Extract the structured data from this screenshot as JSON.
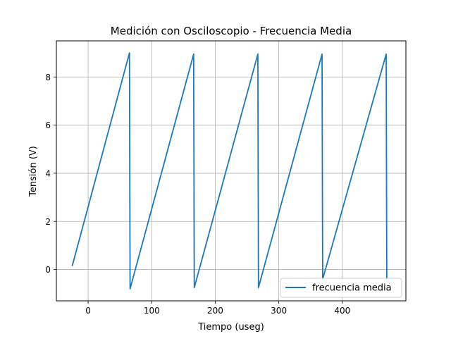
{
  "chart_data": {
    "type": "line",
    "title": "Medición con Osciloscopio - Frecuencia Media",
    "xlabel": "Tiempo (useg)",
    "ylabel": "Tensión (V)",
    "xlim": [
      -50,
      500
    ],
    "ylim": [
      -1.3,
      9.5
    ],
    "xticks": [
      0,
      100,
      200,
      300,
      400
    ],
    "yticks": [
      0,
      2,
      4,
      6,
      8
    ],
    "grid": true,
    "legend": "lower right",
    "series": [
      {
        "name": "frecuencia media",
        "color": "#1f77b4",
        "x": [
          -25,
          65,
          66,
          166,
          167,
          267,
          268,
          368,
          369,
          469,
          470
        ],
        "y": [
          0.15,
          9.0,
          -0.8,
          8.95,
          -0.75,
          8.95,
          -0.75,
          8.95,
          -0.4,
          8.95,
          -0.4
        ]
      }
    ]
  }
}
